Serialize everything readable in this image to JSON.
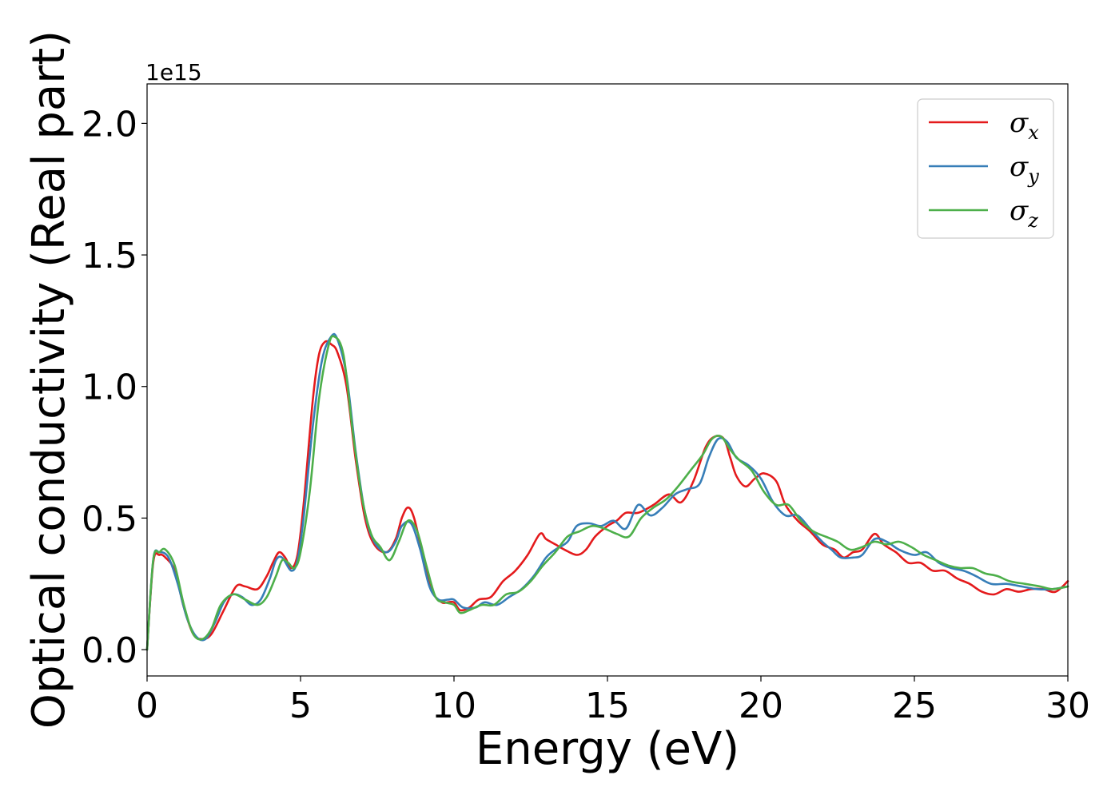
{
  "chart_data": {
    "type": "line",
    "xlabel": "Energy (eV)",
    "ylabel": "Optical conductivity (Real part)",
    "y_offset_label": "1e15",
    "xlim": [
      0,
      30
    ],
    "ylim": [
      -0.1,
      2.15
    ],
    "x_ticks": [
      0,
      5,
      10,
      15,
      20,
      25,
      30
    ],
    "x_tick_labels": [
      "0",
      "5",
      "10",
      "15",
      "20",
      "25",
      "30"
    ],
    "y_ticks": [
      0.0,
      0.5,
      1.0,
      1.5,
      2.0
    ],
    "y_tick_labels": [
      "0.0",
      "0.5",
      "1.0",
      "1.5",
      "2.0"
    ],
    "grid": false,
    "legend_position": "top-right",
    "series": [
      {
        "name": "σx",
        "symbol": "σ",
        "subscript": "x",
        "color": "#e41a1c",
        "x": [
          0,
          0.2,
          0.4,
          0.6,
          0.9,
          1.2,
          1.5,
          1.8,
          2.1,
          2.5,
          2.9,
          3.2,
          3.6,
          3.9,
          4.1,
          4.3,
          4.5,
          4.7,
          4.9,
          5.1,
          5.4,
          5.6,
          5.8,
          6.0,
          6.2,
          6.5,
          6.8,
          7.1,
          7.4,
          7.8,
          8.1,
          8.3,
          8.5,
          8.7,
          9.0,
          9.3,
          9.6,
          9.8,
          10.0,
          10.2,
          10.5,
          10.8,
          11.2,
          11.6,
          12.0,
          12.4,
          12.8,
          13.0,
          13.3,
          13.6,
          14.0,
          14.3,
          14.6,
          15.0,
          15.3,
          15.6,
          16.0,
          16.5,
          17.0,
          17.4,
          17.8,
          18.2,
          18.5,
          18.8,
          19.0,
          19.2,
          19.5,
          19.8,
          20.1,
          20.5,
          20.8,
          21.2,
          21.6,
          22.0,
          22.4,
          22.7,
          23.0,
          23.3,
          23.7,
          24.0,
          24.4,
          24.8,
          25.2,
          25.6,
          26.0,
          26.4,
          26.8,
          27.2,
          27.6,
          28.0,
          28.4,
          28.8,
          29.2,
          29.6,
          30.0
        ],
        "y": [
          0.0,
          0.33,
          0.36,
          0.35,
          0.3,
          0.16,
          0.06,
          0.04,
          0.06,
          0.15,
          0.24,
          0.24,
          0.23,
          0.28,
          0.33,
          0.37,
          0.35,
          0.31,
          0.36,
          0.55,
          0.95,
          1.12,
          1.17,
          1.16,
          1.13,
          1.0,
          0.72,
          0.5,
          0.4,
          0.37,
          0.42,
          0.5,
          0.54,
          0.5,
          0.35,
          0.22,
          0.18,
          0.18,
          0.18,
          0.15,
          0.16,
          0.19,
          0.2,
          0.26,
          0.3,
          0.36,
          0.44,
          0.42,
          0.4,
          0.38,
          0.36,
          0.38,
          0.43,
          0.47,
          0.49,
          0.52,
          0.52,
          0.55,
          0.59,
          0.56,
          0.64,
          0.77,
          0.81,
          0.8,
          0.73,
          0.66,
          0.62,
          0.65,
          0.67,
          0.64,
          0.55,
          0.49,
          0.45,
          0.4,
          0.38,
          0.35,
          0.37,
          0.38,
          0.44,
          0.4,
          0.37,
          0.33,
          0.33,
          0.3,
          0.3,
          0.27,
          0.25,
          0.22,
          0.21,
          0.23,
          0.22,
          0.23,
          0.23,
          0.22,
          0.26
        ]
      },
      {
        "name": "σy",
        "symbol": "σ",
        "subscript": "y",
        "color": "#377eb8",
        "x": [
          0,
          0.2,
          0.4,
          0.7,
          1.0,
          1.3,
          1.6,
          1.9,
          2.2,
          2.5,
          2.8,
          3.1,
          3.4,
          3.7,
          4.0,
          4.2,
          4.4,
          4.7,
          4.9,
          5.1,
          5.4,
          5.7,
          6.0,
          6.2,
          6.5,
          6.8,
          7.1,
          7.4,
          7.8,
          8.1,
          8.3,
          8.6,
          8.9,
          9.2,
          9.5,
          9.8,
          10.0,
          10.3,
          10.7,
          11.0,
          11.4,
          11.8,
          12.2,
          12.6,
          13.0,
          13.3,
          13.7,
          14.0,
          14.4,
          14.8,
          15.2,
          15.6,
          16.0,
          16.4,
          16.8,
          17.2,
          17.6,
          18.0,
          18.3,
          18.6,
          18.9,
          19.2,
          19.6,
          20.0,
          20.4,
          20.8,
          21.2,
          21.6,
          22.0,
          22.3,
          22.6,
          23.0,
          23.3,
          23.7,
          24.1,
          24.5,
          25.0,
          25.4,
          25.8,
          26.2,
          26.6,
          27.0,
          27.5,
          28.0,
          28.5,
          29.0,
          29.5,
          30.0
        ],
        "y": [
          0.0,
          0.34,
          0.37,
          0.35,
          0.25,
          0.12,
          0.05,
          0.04,
          0.1,
          0.18,
          0.21,
          0.2,
          0.17,
          0.19,
          0.27,
          0.34,
          0.35,
          0.3,
          0.34,
          0.5,
          0.85,
          1.1,
          1.19,
          1.18,
          1.04,
          0.75,
          0.52,
          0.41,
          0.37,
          0.41,
          0.47,
          0.48,
          0.38,
          0.24,
          0.19,
          0.19,
          0.19,
          0.16,
          0.16,
          0.18,
          0.17,
          0.2,
          0.23,
          0.28,
          0.35,
          0.38,
          0.41,
          0.47,
          0.48,
          0.47,
          0.49,
          0.46,
          0.55,
          0.51,
          0.54,
          0.59,
          0.61,
          0.63,
          0.73,
          0.8,
          0.79,
          0.73,
          0.7,
          0.65,
          0.56,
          0.51,
          0.51,
          0.46,
          0.41,
          0.38,
          0.35,
          0.35,
          0.36,
          0.42,
          0.41,
          0.38,
          0.36,
          0.37,
          0.33,
          0.31,
          0.3,
          0.28,
          0.25,
          0.25,
          0.24,
          0.23,
          0.23,
          0.24
        ]
      },
      {
        "name": "σz",
        "symbol": "σ",
        "subscript": "z",
        "color": "#4daf4a",
        "x": [
          0,
          0.2,
          0.4,
          0.6,
          0.9,
          1.2,
          1.5,
          1.8,
          2.1,
          2.4,
          2.8,
          3.2,
          3.6,
          3.9,
          4.2,
          4.4,
          4.6,
          4.8,
          5.0,
          5.3,
          5.6,
          5.9,
          6.1,
          6.4,
          6.7,
          7.0,
          7.3,
          7.6,
          7.9,
          8.2,
          8.5,
          8.8,
          9.1,
          9.4,
          9.7,
          10.0,
          10.2,
          10.5,
          10.9,
          11.3,
          11.7,
          12.1,
          12.5,
          12.9,
          13.3,
          13.7,
          14.1,
          14.5,
          14.9,
          15.3,
          15.7,
          16.1,
          16.5,
          16.9,
          17.3,
          17.7,
          18.1,
          18.4,
          18.7,
          19.0,
          19.3,
          19.7,
          20.1,
          20.5,
          20.9,
          21.3,
          21.7,
          22.1,
          22.5,
          22.9,
          23.3,
          23.7,
          24.1,
          24.5,
          24.9,
          25.3,
          25.7,
          26.1,
          26.5,
          26.9,
          27.3,
          27.7,
          28.1,
          28.6,
          29.1,
          29.5,
          30.0
        ],
        "y": [
          0.0,
          0.34,
          0.37,
          0.38,
          0.32,
          0.17,
          0.06,
          0.04,
          0.08,
          0.17,
          0.21,
          0.19,
          0.17,
          0.2,
          0.28,
          0.34,
          0.33,
          0.31,
          0.37,
          0.6,
          0.95,
          1.15,
          1.19,
          1.12,
          0.83,
          0.58,
          0.44,
          0.39,
          0.34,
          0.41,
          0.49,
          0.45,
          0.32,
          0.2,
          0.18,
          0.17,
          0.14,
          0.15,
          0.17,
          0.17,
          0.21,
          0.22,
          0.26,
          0.32,
          0.37,
          0.43,
          0.45,
          0.47,
          0.46,
          0.44,
          0.43,
          0.5,
          0.54,
          0.57,
          0.62,
          0.68,
          0.74,
          0.8,
          0.81,
          0.76,
          0.72,
          0.68,
          0.6,
          0.55,
          0.55,
          0.49,
          0.45,
          0.43,
          0.41,
          0.38,
          0.39,
          0.41,
          0.4,
          0.41,
          0.39,
          0.36,
          0.34,
          0.32,
          0.31,
          0.31,
          0.29,
          0.28,
          0.26,
          0.25,
          0.24,
          0.23,
          0.24
        ]
      }
    ]
  }
}
